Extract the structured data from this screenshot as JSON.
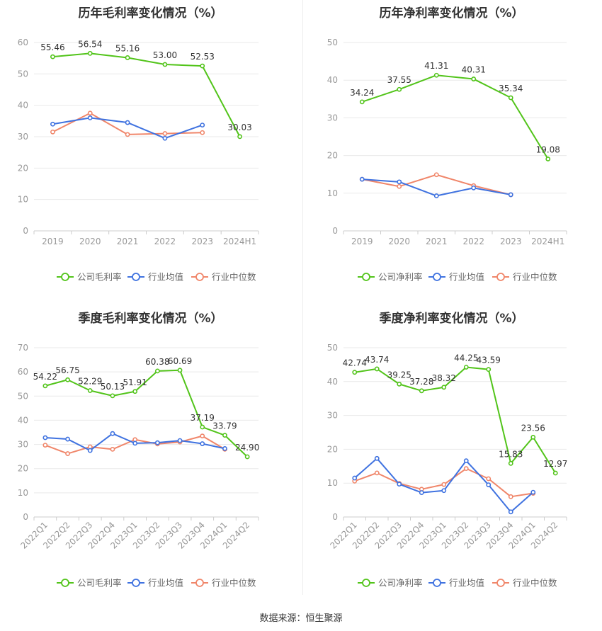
{
  "colors": {
    "company": "#52c41a",
    "avg": "#3f72e0",
    "median": "#f0866a",
    "grid": "#e9e9e9",
    "axis": "#999999",
    "label": "#333333"
  },
  "legend": {
    "company_gross": "公司毛利率",
    "company_net": "公司净利率",
    "avg": "行业均值",
    "median": "行业中位数"
  },
  "source": "数据来源：恒生聚源",
  "chart_data": [
    {
      "type": "line",
      "title": "历年毛利率变化情况（%）",
      "categories": [
        "2019",
        "2020",
        "2021",
        "2022",
        "2023",
        "2024H1"
      ],
      "ylim": [
        0,
        60
      ],
      "yticks": [
        0,
        10,
        20,
        30,
        40,
        50,
        60
      ],
      "legend_position": "bottom",
      "series": [
        {
          "name": "公司毛利率",
          "values": [
            55.46,
            56.54,
            55.16,
            53.0,
            52.53,
            30.03
          ],
          "labels": [
            "55.46",
            "56.54",
            "55.16",
            "53.00",
            "52.53",
            "30.03"
          ]
        },
        {
          "name": "行业均值",
          "values": [
            34.0,
            36.0,
            34.5,
            29.5,
            33.7,
            null
          ]
        },
        {
          "name": "行业中位数",
          "values": [
            31.5,
            37.5,
            30.7,
            31.0,
            31.3,
            null
          ]
        }
      ]
    },
    {
      "type": "line",
      "title": "历年净利率变化情况（%）",
      "categories": [
        "2019",
        "2020",
        "2021",
        "2022",
        "2023",
        "2024H1"
      ],
      "ylim": [
        0,
        50
      ],
      "yticks": [
        0,
        10,
        20,
        30,
        40,
        50
      ],
      "legend_position": "bottom",
      "series": [
        {
          "name": "公司净利率",
          "values": [
            34.24,
            37.55,
            41.31,
            40.31,
            35.34,
            19.08
          ],
          "labels": [
            "34.24",
            "37.55",
            "41.31",
            "40.31",
            "35.34",
            "19.08"
          ]
        },
        {
          "name": "行业均值",
          "values": [
            13.7,
            13.0,
            9.3,
            11.4,
            9.6,
            null
          ]
        },
        {
          "name": "行业中位数",
          "values": [
            13.7,
            11.8,
            14.9,
            12.0,
            9.6,
            null
          ]
        }
      ]
    },
    {
      "type": "line",
      "title": "季度毛利率变化情况（%）",
      "categories": [
        "2022Q1",
        "2022Q2",
        "2022Q3",
        "2022Q4",
        "2023Q1",
        "2023Q2",
        "2023Q3",
        "2023Q4",
        "2024Q1",
        "2024Q2"
      ],
      "ylim": [
        0,
        70
      ],
      "yticks": [
        0,
        10,
        20,
        30,
        40,
        50,
        60,
        70
      ],
      "legend_position": "bottom",
      "series": [
        {
          "name": "公司毛利率",
          "values": [
            54.22,
            56.75,
            52.29,
            50.13,
            51.91,
            60.38,
            60.69,
            37.19,
            33.79,
            24.9
          ],
          "labels": [
            "54.22",
            "56.75",
            "52.29",
            "50.13",
            "51.91",
            "60.38",
            "60.69",
            "37.19",
            "33.79",
            "24.90"
          ]
        },
        {
          "name": "行业均值",
          "values": [
            32.8,
            32.2,
            27.5,
            34.5,
            30.5,
            30.7,
            31.6,
            30.3,
            28.3,
            null
          ]
        },
        {
          "name": "行业中位数",
          "values": [
            29.7,
            26.2,
            29.0,
            28.0,
            32.0,
            30.2,
            31.0,
            33.5,
            28.0,
            null
          ]
        }
      ]
    },
    {
      "type": "line",
      "title": "季度净利率变化情况（%）",
      "categories": [
        "2022Q1",
        "2022Q2",
        "2022Q3",
        "2022Q4",
        "2023Q1",
        "2023Q2",
        "2023Q3",
        "2023Q4",
        "2024Q1",
        "2024Q2"
      ],
      "ylim": [
        0,
        50
      ],
      "yticks": [
        0,
        10,
        20,
        30,
        40,
        50
      ],
      "legend_position": "bottom",
      "series": [
        {
          "name": "公司净利率",
          "values": [
            42.74,
            43.74,
            39.25,
            37.28,
            38.32,
            44.25,
            43.59,
            15.83,
            23.56,
            12.97
          ],
          "labels": [
            "42.74",
            "43.74",
            "39.25",
            "37.28",
            "38.32",
            "44.25",
            "43.59",
            "15.83",
            "23.56",
            "12.97"
          ]
        },
        {
          "name": "行业均值",
          "values": [
            11.5,
            17.3,
            9.7,
            7.2,
            7.8,
            16.6,
            9.5,
            1.5,
            7.3,
            null
          ]
        },
        {
          "name": "行业中位数",
          "values": [
            10.6,
            13.0,
            9.9,
            8.2,
            9.6,
            14.3,
            11.3,
            6.0,
            7.0,
            null
          ]
        }
      ]
    }
  ]
}
